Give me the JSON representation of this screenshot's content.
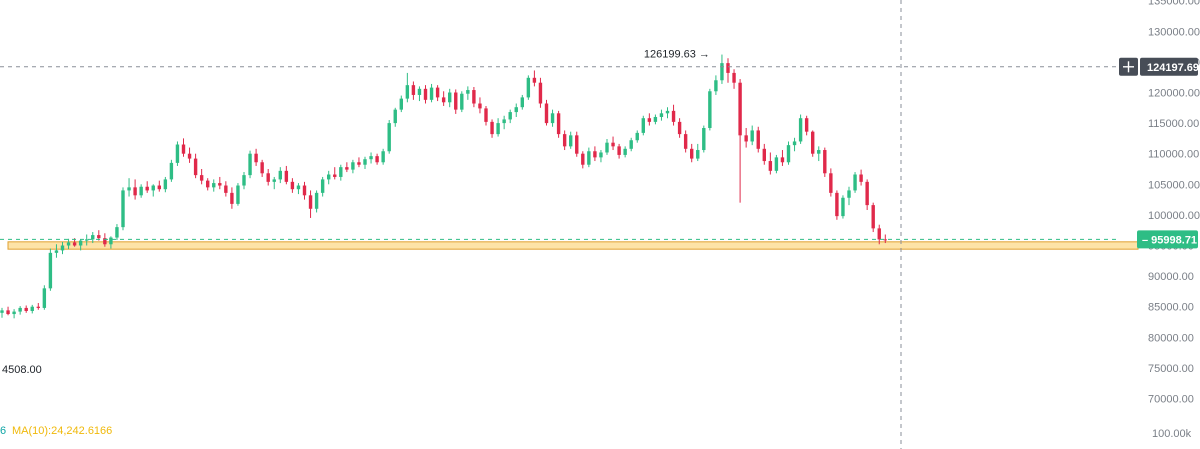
{
  "chart_data": {
    "type": "candlestick",
    "y_axis_ticks": [
      "135000.00",
      "130000.00",
      "125000.00",
      "120000.00",
      "115000.00",
      "110000.00",
      "105000.00",
      "100000.00",
      "95000.00",
      "90000.00",
      "85000.00",
      "80000.00",
      "75000.00",
      "70000.00"
    ],
    "y_tick_values": [
      135000,
      130000,
      125000,
      120000,
      115000,
      110000,
      105000,
      100000,
      95000,
      90000,
      85000,
      80000,
      75000,
      70000
    ],
    "volume_axis_label": "100.00k",
    "ylim": [
      65000,
      136000
    ],
    "crosshair_price": "124197.69",
    "crosshair_value": 124197.69,
    "last_price": "95998.71",
    "last_value": 95998.71,
    "high_annotation": "126199.63",
    "high_value": 126199.63,
    "low_label": "4508.00",
    "ma_legend_prefix": "6",
    "ma_legend": "MA(10):24,242.6166",
    "support_zone": [
      94400,
      95600
    ],
    "candles": [
      [
        84000,
        84800,
        83200,
        84400
      ],
      [
        84400,
        85000,
        83600,
        83800
      ],
      [
        83800,
        84600,
        83100,
        84200
      ],
      [
        84200,
        85100,
        83700,
        84800
      ],
      [
        84800,
        85200,
        84000,
        84300
      ],
      [
        84300,
        85300,
        83900,
        85000
      ],
      [
        85000,
        85600,
        84500,
        84800
      ],
      [
        84800,
        88500,
        84500,
        88000
      ],
      [
        88000,
        94500,
        87600,
        93800
      ],
      [
        93800,
        95200,
        93000,
        94200
      ],
      [
        94200,
        95600,
        93600,
        95000
      ],
      [
        95000,
        96100,
        94400,
        95500
      ],
      [
        95500,
        96200,
        94800,
        95000
      ],
      [
        95000,
        96000,
        94200,
        95800
      ],
      [
        95800,
        96800,
        95000,
        96000
      ],
      [
        96000,
        97200,
        95400,
        96700
      ],
      [
        96700,
        97500,
        95800,
        96200
      ],
      [
        96200,
        97000,
        94800,
        95200
      ],
      [
        95200,
        96500,
        94500,
        96300
      ],
      [
        96300,
        98500,
        95900,
        98000
      ],
      [
        98000,
        104500,
        97500,
        104000
      ],
      [
        104000,
        106000,
        103000,
        104500
      ],
      [
        104500,
        105800,
        102500,
        103200
      ],
      [
        103200,
        105000,
        102800,
        104600
      ],
      [
        104600,
        105500,
        103600,
        104000
      ],
      [
        104000,
        105000,
        103000,
        104800
      ],
      [
        104800,
        105600,
        103800,
        104200
      ],
      [
        104200,
        106200,
        103700,
        105800
      ],
      [
        105800,
        109000,
        105400,
        108500
      ],
      [
        108500,
        112000,
        108000,
        111500
      ],
      [
        111500,
        112500,
        109500,
        110000
      ],
      [
        110000,
        111000,
        108500,
        109200
      ],
      [
        109200,
        110000,
        106000,
        106500
      ],
      [
        106500,
        107500,
        105000,
        105600
      ],
      [
        105600,
        106000,
        104000,
        104500
      ],
      [
        104500,
        105800,
        103800,
        105200
      ],
      [
        105200,
        106200,
        104200,
        104800
      ],
      [
        104800,
        105500,
        103000,
        103600
      ],
      [
        103600,
        104500,
        101000,
        101800
      ],
      [
        101800,
        105200,
        101500,
        104800
      ],
      [
        104800,
        107000,
        104200,
        106500
      ],
      [
        106500,
        110500,
        106000,
        110000
      ],
      [
        110000,
        110800,
        108000,
        108600
      ],
      [
        108600,
        109000,
        106200,
        106800
      ],
      [
        106800,
        107500,
        104800,
        105400
      ],
      [
        105400,
        106200,
        104200,
        105800
      ],
      [
        105800,
        107800,
        105200,
        107200
      ],
      [
        107200,
        108000,
        105000,
        105400
      ],
      [
        105400,
        106000,
        103600,
        104200
      ],
      [
        104200,
        105200,
        103400,
        104800
      ],
      [
        104800,
        105400,
        102500,
        103200
      ],
      [
        103200,
        104000,
        99500,
        101000
      ],
      [
        101000,
        104000,
        100400,
        103600
      ],
      [
        103600,
        106200,
        103000,
        105800
      ],
      [
        105800,
        107200,
        105000,
        106600
      ],
      [
        106600,
        107800,
        105800,
        106200
      ],
      [
        106200,
        108200,
        105600,
        107800
      ],
      [
        107800,
        108600,
        107000,
        107400
      ],
      [
        107400,
        109000,
        106800,
        108600
      ],
      [
        108600,
        109400,
        107800,
        108200
      ],
      [
        108200,
        109500,
        107500,
        109100
      ],
      [
        109100,
        110200,
        108400,
        109600
      ],
      [
        109600,
        110000,
        108200,
        108600
      ],
      [
        108600,
        110800,
        108200,
        110400
      ],
      [
        110400,
        115500,
        110000,
        115000
      ],
      [
        115000,
        117500,
        114400,
        117200
      ],
      [
        117200,
        119500,
        116800,
        119000
      ],
      [
        119000,
        123200,
        118400,
        121200
      ],
      [
        121200,
        121800,
        118800,
        119600
      ],
      [
        119600,
        121000,
        118600,
        120600
      ],
      [
        120600,
        121200,
        118200,
        118800
      ],
      [
        118800,
        121400,
        118400,
        120800
      ],
      [
        120800,
        121200,
        118600,
        119200
      ],
      [
        119200,
        120200,
        117800,
        118400
      ],
      [
        118400,
        120600,
        117600,
        120000
      ],
      [
        120000,
        120500,
        116500,
        117200
      ],
      [
        117200,
        120200,
        116800,
        119800
      ],
      [
        119800,
        121000,
        118800,
        120400
      ],
      [
        120400,
        120900,
        117600,
        118200
      ],
      [
        118200,
        119200,
        116600,
        117400
      ],
      [
        117400,
        117800,
        114600,
        115200
      ],
      [
        115200,
        115600,
        112600,
        113200
      ],
      [
        113200,
        115800,
        112800,
        115000
      ],
      [
        115000,
        116200,
        114000,
        115600
      ],
      [
        115600,
        117200,
        115000,
        116800
      ],
      [
        116800,
        118200,
        116000,
        117600
      ],
      [
        117600,
        119600,
        117200,
        119200
      ],
      [
        119200,
        122800,
        118800,
        122400
      ],
      [
        122400,
        123600,
        121000,
        121600
      ],
      [
        121600,
        122400,
        117500,
        118200
      ],
      [
        118200,
        118800,
        114600,
        115000
      ],
      [
        115000,
        117200,
        114400,
        116600
      ],
      [
        116600,
        117000,
        112600,
        113200
      ],
      [
        113200,
        113800,
        110600,
        111200
      ],
      [
        111200,
        113600,
        110800,
        113000
      ],
      [
        113000,
        113600,
        109500,
        110000
      ],
      [
        110000,
        110400,
        107600,
        108200
      ],
      [
        108200,
        111000,
        107800,
        110400
      ],
      [
        110400,
        111200,
        108800,
        109400
      ],
      [
        109400,
        110600,
        108600,
        110200
      ],
      [
        110200,
        112400,
        109800,
        111800
      ],
      [
        111800,
        112800,
        110600,
        111200
      ],
      [
        111200,
        111600,
        109200,
        109800
      ],
      [
        109800,
        111200,
        109400,
        110800
      ],
      [
        110800,
        112600,
        110400,
        112200
      ],
      [
        112200,
        113800,
        111800,
        113400
      ],
      [
        113400,
        116200,
        113000,
        115800
      ],
      [
        115800,
        116600,
        114600,
        115200
      ],
      [
        115200,
        116400,
        114800,
        116000
      ],
      [
        116000,
        117200,
        115400,
        116600
      ],
      [
        116600,
        117600,
        115800,
        117000
      ],
      [
        117000,
        118000,
        114600,
        115200
      ],
      [
        115200,
        115800,
        112600,
        113200
      ],
      [
        113200,
        113800,
        110200,
        110800
      ],
      [
        110800,
        111600,
        108600,
        109200
      ],
      [
        109200,
        111600,
        108800,
        110600
      ],
      [
        110600,
        114600,
        110200,
        114200
      ],
      [
        114200,
        120600,
        113800,
        120200
      ],
      [
        120200,
        122800,
        119600,
        122000
      ],
      [
        122000,
        126199.63,
        121400,
        124800
      ],
      [
        124800,
        125600,
        121600,
        123200
      ],
      [
        123200,
        123800,
        120600,
        121600
      ],
      [
        121600,
        122200,
        102000,
        113000
      ],
      [
        113000,
        114200,
        111000,
        112000
      ],
      [
        112000,
        114600,
        111400,
        113800
      ],
      [
        113800,
        114400,
        110200,
        110800
      ],
      [
        110800,
        111600,
        108200,
        108800
      ],
      [
        108800,
        110200,
        106600,
        107200
      ],
      [
        107200,
        109800,
        106800,
        109400
      ],
      [
        109400,
        110600,
        108000,
        108600
      ],
      [
        108600,
        112000,
        108200,
        111400
      ],
      [
        111400,
        112600,
        110400,
        112000
      ],
      [
        112000,
        116400,
        111600,
        115800
      ],
      [
        115800,
        116200,
        113000,
        113600
      ],
      [
        113600,
        113800,
        109500,
        110000
      ],
      [
        110000,
        111200,
        108800,
        110600
      ],
      [
        110600,
        111000,
        106200,
        106800
      ],
      [
        106800,
        107600,
        103000,
        103600
      ],
      [
        103600,
        104000,
        99200,
        99800
      ],
      [
        99800,
        103200,
        99400,
        102800
      ],
      [
        102800,
        104600,
        101600,
        104000
      ],
      [
        104000,
        107000,
        103600,
        106600
      ],
      [
        106600,
        107400,
        104800,
        105400
      ],
      [
        105400,
        105800,
        100800,
        101600
      ],
      [
        101600,
        102000,
        97200,
        97800
      ],
      [
        97800,
        98400,
        95200,
        96000
      ],
      [
        96000,
        96800,
        95400,
        95998.71
      ]
    ]
  }
}
